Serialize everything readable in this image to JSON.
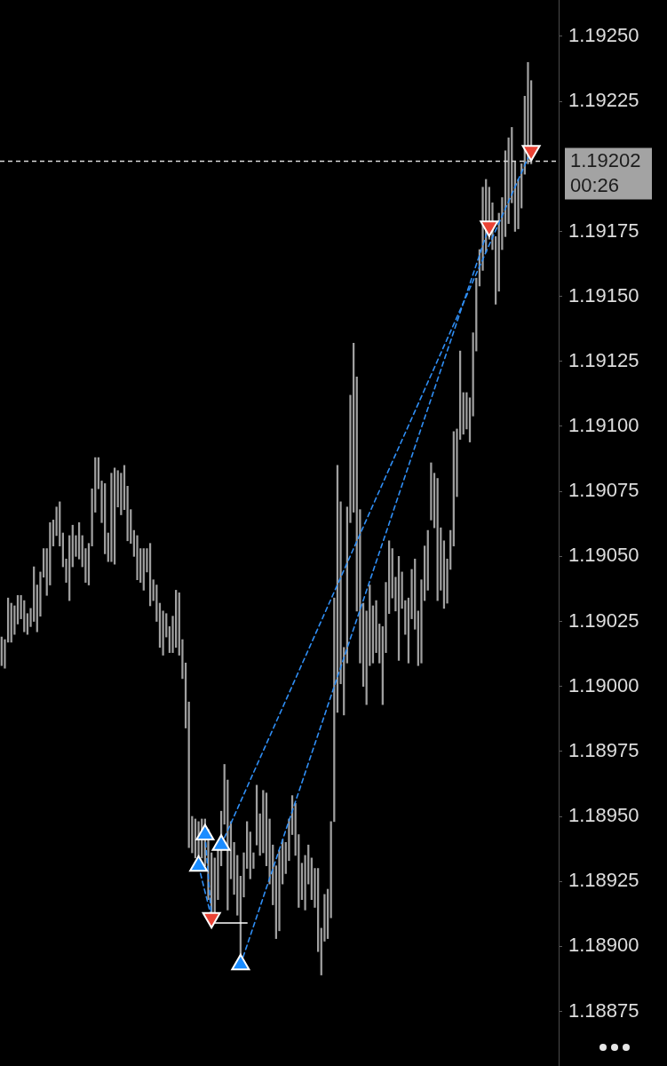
{
  "chart_data": {
    "type": "bar",
    "categories": [
      null,
      null,
      null,
      null,
      null,
      null,
      null,
      null,
      null,
      null,
      null,
      null,
      null,
      null,
      null,
      null,
      null,
      null,
      null,
      null,
      null,
      null,
      null,
      null,
      null,
      null,
      null,
      null,
      null,
      null,
      null,
      null,
      null,
      null,
      null,
      null,
      null,
      null,
      null,
      null,
      null,
      null,
      null,
      null,
      null,
      null,
      null,
      null,
      null,
      null,
      null,
      null,
      null,
      null,
      null,
      null,
      null,
      null,
      null,
      null,
      null,
      null,
      null,
      null,
      null,
      null,
      null,
      null,
      null,
      null,
      null,
      null,
      null,
      null,
      null,
      null,
      null,
      null,
      null,
      null,
      null,
      null,
      null,
      null,
      null,
      null,
      null,
      null,
      null,
      null,
      null,
      null,
      null,
      null,
      null,
      null,
      null,
      null,
      null,
      null,
      null,
      null,
      null,
      null,
      null,
      null,
      null,
      null,
      null,
      null,
      null,
      null,
      null,
      null,
      null,
      null,
      null,
      null,
      null,
      null,
      null,
      null,
      null,
      null,
      null,
      null,
      null,
      null,
      null,
      null,
      null,
      null,
      null,
      null,
      null,
      null,
      null,
      null,
      null,
      null,
      null,
      null,
      null,
      null,
      null,
      null,
      null,
      null,
      null,
      null,
      null,
      null,
      null,
      null,
      null,
      null,
      null,
      null,
      null,
      null,
      null,
      null,
      null,
      null,
      null,
      null,
      null,
      null,
      null,
      null,
      null,
      null,
      null
    ],
    "ylim": [
      1.18854,
      1.19264
    ],
    "yticks": [
      1.18875,
      {
        "value": 1.189,
        "label": "1.18900"
      },
      1.18925,
      {
        "value": 1.1895,
        "label": "1.18950"
      },
      1.18975,
      {
        "value": 1.19,
        "label": "1.19000"
      },
      1.19025,
      {
        "value": 1.1905,
        "label": "1.19050"
      },
      1.19075,
      {
        "value": 1.191,
        "label": "1.19100"
      },
      1.19125,
      {
        "value": 1.1915,
        "label": "1.19150"
      },
      1.19175,
      1.19225,
      {
        "value": 1.1925,
        "label": "1.19250"
      }
    ],
    "ref_lines": [
      {
        "axis": "y",
        "value": 1.19202,
        "label": "1.19202",
        "color": "#d9d9d9",
        "line_style": "dashed"
      }
    ],
    "annotations": [
      "00:26"
    ],
    "series": [
      {
        "color": "#a0a0a0",
        "base": [
          1.19008,
          1.19007,
          1.19017,
          1.19017,
          1.1902,
          1.19024,
          1.19026,
          1.19021,
          1.1902,
          1.19023,
          1.19025,
          1.19021,
          1.19027,
          1.19042,
          1.19035,
          1.19039,
          1.19054,
          1.19058,
          1.19054,
          1.19046,
          1.1904,
          1.19033,
          1.19046,
          1.1905,
          1.19049,
          1.19046,
          1.1904,
          1.19039,
          1.19054,
          1.19067,
          1.19076,
          1.19063,
          1.19051,
          1.19048,
          1.19048,
          1.19047,
          1.19069,
          1.19066,
          1.19068,
          1.19056,
          1.19055,
          1.1905,
          1.19041,
          1.1904,
          1.19037,
          1.19044,
          1.19031,
          1.19033,
          1.19025,
          1.19015,
          1.19012,
          1.19019,
          1.19013,
          1.19013,
          1.19015,
          1.19012,
          1.19003,
          1.18984,
          1.18938,
          1.18936,
          1.18934,
          1.18931,
          1.18934,
          1.18931,
          1.18918,
          1.18913,
          1.1891,
          1.18918,
          1.18931,
          1.18947,
          1.18914,
          1.18926,
          1.1892,
          1.18912,
          1.18893,
          1.18919,
          1.1893,
          1.18926,
          1.1893,
          1.18939,
          1.18935,
          1.18936,
          1.18931,
          1.18924,
          1.18916,
          1.18903,
          1.18906,
          1.18924,
          1.18928,
          1.18933,
          1.18943,
          1.18935,
          1.18915,
          1.18918,
          1.18914,
          1.18924,
          1.18918,
          1.18915,
          1.18898,
          1.18889,
          1.18902,
          1.18903,
          1.18911,
          1.18948,
          1.1899,
          1.19001,
          1.18989,
          1.19009,
          1.19063,
          1.19067,
          1.19029,
          1.19009,
          1.19,
          1.18993,
          1.19008,
          1.19009,
          1.19013,
          1.19009,
          1.18993,
          1.19013,
          1.19028,
          1.19034,
          1.19029,
          1.1901,
          1.1903,
          1.1902,
          1.19009,
          1.19026,
          1.19022,
          1.19008,
          1.19009,
          1.19033,
          1.19037,
          1.19064,
          1.19061,
          1.19033,
          1.19037,
          1.1903,
          1.19032,
          1.19045,
          1.19054,
          1.19073,
          1.19095,
          1.19097,
          1.19099,
          1.19094,
          1.19104,
          1.19129,
          1.19154,
          1.1916,
          1.19167,
          1.19172,
          1.19168,
          1.19147,
          1.19152,
          1.19168,
          1.19173,
          1.19178,
          1.19186,
          1.19175,
          1.19176,
          1.19184,
          1.19197,
          1.19201,
          1.19201,
          null,
          null,
          null,
          null,
          null,
          null,
          null,
          null
        ],
        "values": [
          0.00011,
          0.00011,
          0.00017,
          0.00015,
          0.00011,
          0.00011,
          9e-05,
          0.00012,
          8e-05,
          7e-05,
          0.00021,
          0.00018,
          0.00017,
          0.00011,
          0.00018,
          0.00024,
          0.0001,
          0.00011,
          0.00017,
          0.00013,
          9e-05,
          0.00025,
          0.00016,
          8e-05,
          0.00014,
          0.00012,
          0.00013,
          0.00016,
          0.00022,
          0.00021,
          0.00012,
          0.00016,
          0.00027,
          0.00011,
          0.00034,
          0.00037,
          0.00014,
          0.00016,
          0.00017,
          0.00021,
          0.00013,
          0.0001,
          0.00017,
          0.00013,
          0.00016,
          9e-05,
          0.00024,
          8e-05,
          0.00014,
          0.00017,
          0.00017,
          9e-05,
          0.0001,
          0.00014,
          0.00022,
          0.00024,
          0.00015,
          0.00025,
          0.00056,
          0.00014,
          0.00015,
          0.00017,
          0.00015,
          0.00018,
          0.00027,
          0.00023,
          0.00024,
          0.0002,
          0.00021,
          0.00023,
          0.0005,
          0.00022,
          0.0002,
          0.00023,
          0.00034,
          0.00017,
          0.00018,
          0.00018,
          6e-05,
          0.00023,
          0.00016,
          0.00024,
          0.00028,
          0.00025,
          0.00023,
          0.00028,
          0.00031,
          0.00017,
          0.00012,
          0.00016,
          0.00015,
          0.0002,
          0.00028,
          0.00014,
          0.00021,
          0.00015,
          0.00016,
          0.00015,
          0.00032,
          0.00018,
          0.00018,
          0.00019,
          0.00037,
          0.00086,
          0.00095,
          0.0007,
          0.00026,
          0.0006,
          0.00049,
          0.00065,
          0.0009,
          0.00059,
          0.00032,
          0.00036,
          0.00031,
          0.00022,
          0.0002,
          0.00015,
          0.0003,
          0.00027,
          0.00028,
          0.00019,
          0.00013,
          0.0004,
          0.00014,
          0.00013,
          0.00025,
          0.00019,
          0.00027,
          0.00021,
          0.00032,
          0.00021,
          0.00023,
          0.00022,
          0.00021,
          0.00047,
          0.00024,
          0.00026,
          0.00017,
          0.00015,
          0.00044,
          0.00026,
          0.00034,
          0.00016,
          0.00014,
          0.00017,
          0.00032,
          0.00028,
          0.00014,
          0.00032,
          0.00028,
          0.0002,
          0.00018,
          0.00026,
          0.0003,
          0.0002,
          0.00033,
          0.00033,
          0.00029,
          0.00027,
          0.00019,
          0.00017,
          0.0003,
          0.00039,
          0.00032,
          null,
          null,
          null,
          null,
          null,
          null,
          null,
          null
        ]
      },
      {
        "type": "line",
        "color": "#2f8ef5",
        "line_style": "dashed",
        "values": [
          null,
          null,
          null,
          null,
          null,
          null,
          null,
          null,
          null,
          null,
          null,
          null,
          null,
          null,
          null,
          null,
          null,
          null,
          null,
          null,
          null,
          null,
          null,
          null,
          null,
          null,
          null,
          null,
          null,
          null,
          null,
          null,
          null,
          null,
          null,
          null,
          null,
          null,
          null,
          null,
          null,
          null,
          null,
          null,
          null,
          null,
          null,
          null,
          null,
          null,
          null,
          null,
          null,
          null,
          null,
          null,
          null,
          null,
          null,
          null,
          null,
          1.18931,
          null,
          null,
          null,
          1.18911,
          null,
          null,
          null,
          null,
          null,
          null,
          null,
          null,
          null,
          null,
          null,
          null,
          null,
          null,
          null,
          null,
          null,
          null,
          null,
          null,
          null,
          null,
          null,
          null,
          null,
          null,
          null,
          null,
          null,
          null,
          null,
          null,
          null,
          null,
          null,
          null,
          null,
          null,
          null,
          null,
          null,
          null,
          null,
          null,
          null,
          null,
          null,
          null,
          null,
          null,
          null,
          null,
          null,
          null,
          null,
          null,
          null,
          null,
          null,
          null,
          null,
          null,
          null,
          null,
          null,
          null,
          null,
          null,
          null,
          null,
          null,
          null,
          null,
          null,
          null,
          null,
          null,
          null,
          null,
          null,
          null,
          null,
          null,
          null,
          null,
          null,
          null,
          null,
          null,
          null,
          null,
          null,
          null,
          null,
          null,
          null,
          null,
          null,
          null,
          null,
          null,
          null,
          null,
          null,
          null,
          null,
          null
        ]
      },
      {
        "type": "line",
        "color": "#2f8ef5",
        "line_style": "dashed",
        "values": [
          null,
          null,
          null,
          null,
          null,
          null,
          null,
          null,
          null,
          null,
          null,
          null,
          null,
          null,
          null,
          null,
          null,
          null,
          null,
          null,
          null,
          null,
          null,
          null,
          null,
          null,
          null,
          null,
          null,
          null,
          null,
          null,
          null,
          null,
          null,
          null,
          null,
          null,
          null,
          null,
          null,
          null,
          null,
          null,
          null,
          null,
          null,
          null,
          null,
          null,
          null,
          null,
          null,
          null,
          null,
          null,
          null,
          null,
          null,
          null,
          null,
          null,
          null,
          1.18943,
          null,
          1.18911,
          null,
          null,
          null,
          null,
          null,
          null,
          null,
          null,
          null,
          null,
          null,
          null,
          null,
          null,
          null,
          null,
          null,
          null,
          null,
          null,
          null,
          null,
          null,
          null,
          null,
          null,
          null,
          null,
          null,
          null,
          null,
          null,
          null,
          null,
          null,
          null,
          null,
          null,
          null,
          null,
          null,
          null,
          null,
          null,
          null,
          null,
          null,
          null,
          null,
          null,
          null,
          null,
          null,
          null,
          null,
          null,
          null,
          null,
          null,
          null,
          null,
          null,
          null,
          null,
          null,
          null,
          null,
          null,
          null,
          null,
          null,
          null,
          null,
          null,
          null,
          null,
          null,
          null,
          null,
          null,
          null,
          null,
          null,
          null,
          null,
          null,
          null,
          null,
          null,
          null,
          null,
          null,
          null,
          null,
          null,
          null,
          null,
          null,
          null,
          null,
          null,
          null,
          null,
          null,
          null,
          null,
          null
        ]
      },
      {
        "type": "line",
        "color": "#2f8ef5",
        "line_style": "dashed",
        "values": [
          null,
          null,
          null,
          null,
          null,
          null,
          null,
          null,
          null,
          null,
          null,
          null,
          null,
          null,
          null,
          null,
          null,
          null,
          null,
          null,
          null,
          null,
          null,
          null,
          null,
          null,
          null,
          null,
          null,
          null,
          null,
          null,
          null,
          null,
          null,
          null,
          null,
          null,
          null,
          null,
          null,
          null,
          null,
          null,
          null,
          null,
          null,
          null,
          null,
          null,
          null,
          null,
          null,
          null,
          null,
          null,
          null,
          null,
          null,
          null,
          null,
          null,
          null,
          null,
          null,
          null,
          null,
          null,
          1.18939,
          null,
          null,
          null,
          null,
          null,
          null,
          null,
          null,
          null,
          null,
          null,
          null,
          null,
          null,
          null,
          null,
          null,
          null,
          null,
          null,
          null,
          null,
          null,
          null,
          null,
          null,
          null,
          null,
          null,
          null,
          null,
          null,
          null,
          null,
          null,
          null,
          null,
          null,
          null,
          null,
          null,
          null,
          null,
          null,
          null,
          null,
          null,
          null,
          null,
          null,
          null,
          null,
          null,
          null,
          null,
          null,
          null,
          null,
          null,
          null,
          null,
          null,
          null,
          null,
          null,
          null,
          null,
          null,
          null,
          null,
          null,
          null,
          null,
          null,
          null,
          null,
          null,
          null,
          null,
          null,
          null,
          null,
          null,
          null,
          null,
          null,
          null,
          null,
          null,
          null,
          null,
          null,
          null,
          null,
          null,
          1.19206,
          null,
          null,
          null,
          null,
          null,
          null,
          null,
          null
        ]
      },
      {
        "type": "line",
        "color": "#2f8ef5",
        "line_style": "dashed",
        "values": [
          null,
          null,
          null,
          null,
          null,
          null,
          null,
          null,
          null,
          null,
          null,
          null,
          null,
          null,
          null,
          null,
          null,
          null,
          null,
          null,
          null,
          null,
          null,
          null,
          null,
          null,
          null,
          null,
          null,
          null,
          null,
          null,
          null,
          null,
          null,
          null,
          null,
          null,
          null,
          null,
          null,
          null,
          null,
          null,
          null,
          null,
          null,
          null,
          null,
          null,
          null,
          null,
          null,
          null,
          null,
          null,
          null,
          null,
          null,
          null,
          null,
          null,
          null,
          null,
          null,
          null,
          null,
          null,
          null,
          null,
          null,
          null,
          null,
          null,
          1.18893,
          null,
          null,
          null,
          null,
          null,
          null,
          null,
          null,
          null,
          null,
          null,
          null,
          null,
          null,
          null,
          null,
          null,
          null,
          null,
          null,
          null,
          null,
          null,
          null,
          null,
          null,
          null,
          null,
          null,
          null,
          null,
          null,
          null,
          null,
          null,
          null,
          null,
          null,
          null,
          null,
          null,
          null,
          null,
          null,
          null,
          null,
          null,
          null,
          null,
          null,
          null,
          null,
          null,
          null,
          null,
          null,
          null,
          null,
          null,
          null,
          null,
          null,
          null,
          null,
          null,
          null,
          null,
          null,
          null,
          null,
          null,
          null,
          null,
          null,
          null,
          null,
          1.19177,
          null,
          null,
          null,
          null,
          null,
          null,
          null,
          null,
          null,
          null,
          null,
          null,
          null,
          null,
          null,
          null,
          null,
          null,
          null,
          null,
          null
        ]
      },
      {
        "type": "line",
        "color": "#ffffff",
        "values": [
          null,
          null,
          null,
          null,
          null,
          null,
          null,
          null,
          null,
          null,
          null,
          null,
          null,
          null,
          null,
          null,
          null,
          null,
          null,
          null,
          null,
          null,
          null,
          null,
          null,
          null,
          null,
          null,
          null,
          null,
          null,
          null,
          null,
          null,
          null,
          null,
          null,
          null,
          null,
          null,
          null,
          null,
          null,
          null,
          null,
          null,
          null,
          null,
          null,
          null,
          null,
          null,
          null,
          null,
          null,
          null,
          null,
          null,
          null,
          null,
          null,
          null,
          null,
          null,
          null,
          null,
          1.18909,
          1.18909,
          1.18909,
          1.18909,
          1.18909,
          1.18909,
          1.18909,
          1.18909,
          1.18909,
          1.18909,
          1.18909,
          null,
          null,
          null,
          null,
          null,
          null,
          null,
          null,
          null,
          null,
          null,
          null,
          null,
          null,
          null,
          null,
          null,
          null,
          null,
          null,
          null,
          null,
          null,
          null,
          null,
          null,
          null,
          null,
          null,
          null,
          null,
          null,
          null,
          null,
          null,
          null,
          null,
          null,
          null,
          null,
          null,
          null,
          null,
          null,
          null,
          null,
          null,
          null,
          null,
          null,
          null,
          null,
          null,
          null,
          null,
          null,
          null,
          null,
          null,
          null,
          null,
          null,
          null,
          null,
          null,
          null,
          null,
          null,
          null,
          null,
          null,
          null,
          null,
          null,
          null,
          null,
          null,
          null,
          null,
          null,
          null,
          null,
          null,
          null,
          null,
          null,
          null,
          null,
          null,
          null,
          null,
          null,
          null,
          null,
          null,
          null
        ]
      },
      {
        "type": "scatter",
        "color": "#1a8cff",
        "marker": "triangle",
        "values": [
          null,
          null,
          null,
          null,
          null,
          null,
          null,
          null,
          null,
          null,
          null,
          null,
          null,
          null,
          null,
          null,
          null,
          null,
          null,
          null,
          null,
          null,
          null,
          null,
          null,
          null,
          null,
          null,
          null,
          null,
          null,
          null,
          null,
          null,
          null,
          null,
          null,
          null,
          null,
          null,
          null,
          null,
          null,
          null,
          null,
          null,
          null,
          null,
          null,
          null,
          null,
          null,
          null,
          null,
          null,
          null,
          null,
          null,
          null,
          null,
          null,
          1.18931,
          null,
          1.18943,
          null,
          null,
          null,
          null,
          1.18939,
          null,
          null,
          null,
          null,
          null,
          1.18893,
          null,
          null,
          null,
          null,
          null,
          null,
          null,
          null,
          null,
          null,
          null,
          null,
          null,
          null,
          null,
          null,
          null,
          null,
          null,
          null,
          null,
          null,
          null,
          null,
          null,
          null,
          null,
          null,
          null,
          null,
          null,
          null,
          null,
          null,
          null,
          null,
          null,
          null,
          null,
          null,
          null,
          null,
          null,
          null,
          null,
          null,
          null,
          null,
          null,
          null,
          null,
          null,
          null,
          null,
          null,
          null,
          null,
          null,
          null,
          null,
          null,
          null,
          null,
          null,
          null,
          null,
          null,
          null,
          null,
          null,
          null,
          null,
          null,
          null,
          null,
          null,
          null,
          null,
          null,
          null,
          null,
          null,
          null,
          null,
          null,
          null,
          null,
          null,
          null,
          null,
          null,
          null,
          null,
          null,
          null,
          null,
          null,
          null
        ]
      },
      {
        "type": "scatter",
        "color": "#ea4335",
        "marker": "triangle",
        "values": [
          null,
          null,
          null,
          null,
          null,
          null,
          null,
          null,
          null,
          null,
          null,
          null,
          null,
          null,
          null,
          null,
          null,
          null,
          null,
          null,
          null,
          null,
          null,
          null,
          null,
          null,
          null,
          null,
          null,
          null,
          null,
          null,
          null,
          null,
          null,
          null,
          null,
          null,
          null,
          null,
          null,
          null,
          null,
          null,
          null,
          null,
          null,
          null,
          null,
          null,
          null,
          null,
          null,
          null,
          null,
          null,
          null,
          null,
          null,
          null,
          null,
          null,
          null,
          null,
          null,
          1.18911,
          null,
          null,
          null,
          null,
          null,
          null,
          null,
          null,
          null,
          null,
          null,
          null,
          null,
          null,
          null,
          null,
          null,
          null,
          null,
          null,
          null,
          null,
          null,
          null,
          null,
          null,
          null,
          null,
          null,
          null,
          null,
          null,
          null,
          null,
          null,
          null,
          null,
          null,
          null,
          null,
          null,
          null,
          null,
          null,
          null,
          null,
          null,
          null,
          null,
          null,
          null,
          null,
          null,
          null,
          null,
          null,
          null,
          null,
          null,
          null,
          null,
          null,
          null,
          null,
          null,
          null,
          null,
          null,
          null,
          null,
          null,
          null,
          null,
          null,
          null,
          null,
          null,
          null,
          null,
          null,
          null,
          null,
          null,
          null,
          null,
          1.19177,
          null,
          null,
          null,
          null,
          null,
          null,
          null,
          null,
          null,
          null,
          null,
          null,
          1.19206,
          null,
          null,
          null,
          null,
          null,
          null,
          null,
          null
        ]
      }
    ]
  }
}
